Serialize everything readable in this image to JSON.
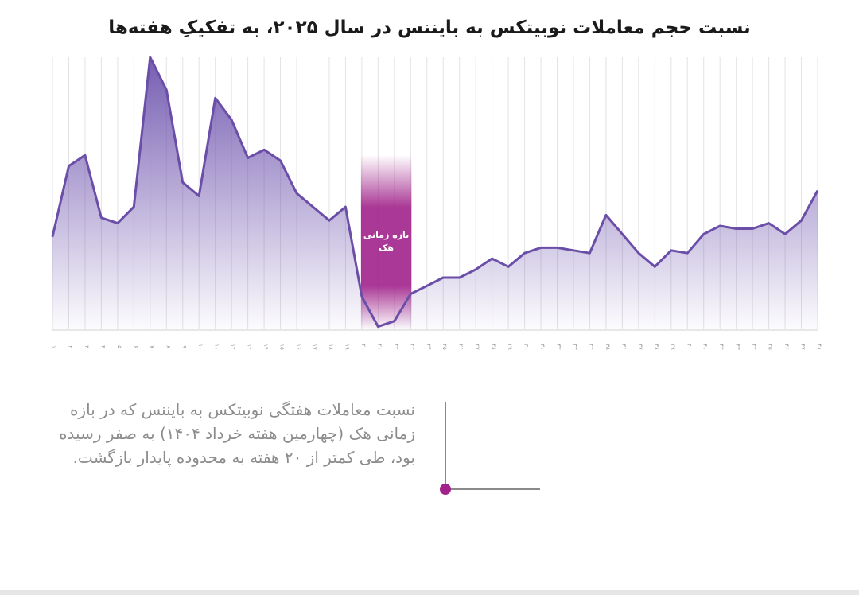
{
  "chart_data": {
    "type": "area",
    "title": "نسبت حجم معاملات نوبیتکس به بایننس در سال ۲۰۲۵، به تفکیکِ هفته‌ها",
    "xlabel": "",
    "ylabel": "",
    "grid": "vertical",
    "legend": "none",
    "x": [
      "۱",
      "۲",
      "۳",
      "۴",
      "۵",
      "۶",
      "۷",
      "۸",
      "۹",
      "۱۰",
      "۱۱",
      "۱۲",
      "۱۳",
      "۱۴",
      "۱۵",
      "۱۶",
      "۱۷",
      "۱۸",
      "۱۹",
      "۲۰",
      "۲۱",
      "۲۲",
      "۲۳",
      "۲۴",
      "۲۵",
      "۲۶",
      "۲۷",
      "۲۸",
      "۲۹",
      "۳۰",
      "۳۱",
      "۳۲",
      "۳۳",
      "۳۴",
      "۳۵",
      "۳۶",
      "۳۷",
      "۳۸",
      "۳۹",
      "۴۰",
      "۴۱",
      "۴۲",
      "۴۳",
      "۴۴",
      "۴۵",
      "۴۶",
      "۴۷",
      "۴۸"
    ],
    "values": [
      0.34,
      0.6,
      0.64,
      0.41,
      0.39,
      0.45,
      1.0,
      0.88,
      0.54,
      0.49,
      0.85,
      0.77,
      0.63,
      0.66,
      0.62,
      0.5,
      0.45,
      0.4,
      0.45,
      0.12,
      0.01,
      0.03,
      0.13,
      0.16,
      0.19,
      0.19,
      0.22,
      0.26,
      0.23,
      0.28,
      0.3,
      0.3,
      0.29,
      0.28,
      0.42,
      0.35,
      0.28,
      0.23,
      0.29,
      0.28,
      0.35,
      0.38,
      0.37,
      0.37,
      0.39,
      0.35,
      0.4,
      0.51
    ],
    "ylim": [
      0,
      1
    ],
    "line_color": "#6a4ea8",
    "fill_top_color": "#6f55ae",
    "highlight": {
      "label": "بازه زمانی هک",
      "from_index": 19,
      "to_index": 22,
      "color": "#a0228a"
    }
  },
  "annotation": {
    "text": "نسبت معاملات هفتگی نوبیتکس به بایننس که در بازه زمانی هک (چهارمین هفته خرداد ۱۴۰۴) به صفر رسیده بود، طی کمتر از ۲۰ هفته به محدوده پایدار بازگشت.",
    "marker_color": "#a0228a",
    "line_color": "#8a8a8a"
  }
}
